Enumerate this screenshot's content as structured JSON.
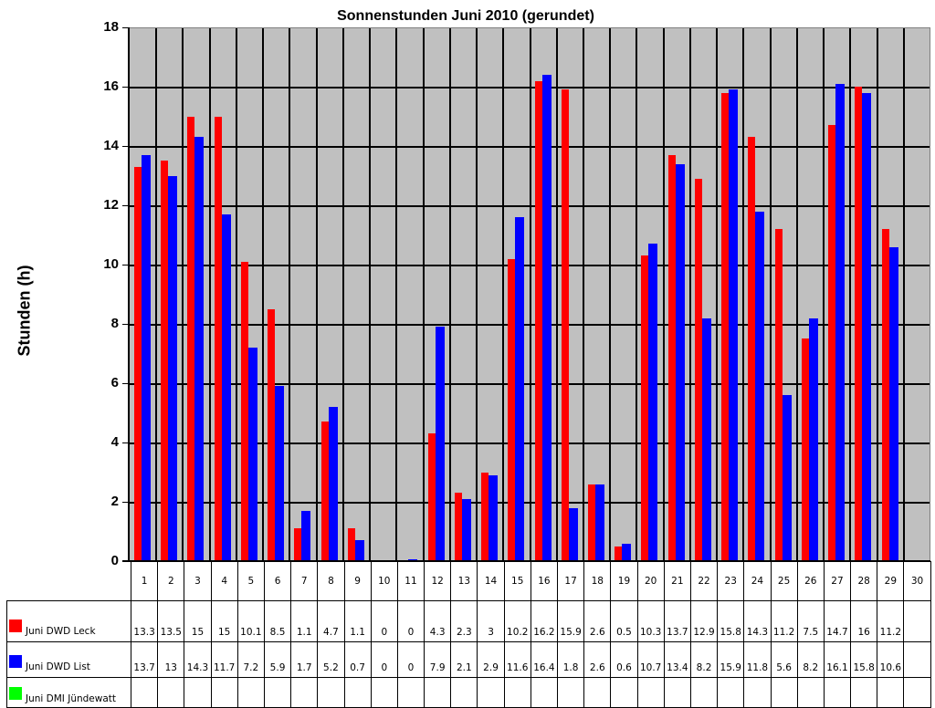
{
  "chart_data": {
    "type": "bar",
    "title": "Sonnenstunden Juni 2010 (gerundet)",
    "xlabel": "",
    "ylabel": "Stunden (h)",
    "ylim": [
      0,
      18
    ],
    "yticks": [
      0,
      2,
      4,
      6,
      8,
      10,
      12,
      14,
      16,
      18
    ],
    "grid": true,
    "legend_position": "data-table-bottom",
    "categories": [
      "1",
      "2",
      "3",
      "4",
      "5",
      "6",
      "7",
      "8",
      "9",
      "10",
      "11",
      "12",
      "13",
      "14",
      "15",
      "16",
      "17",
      "18",
      "19",
      "20",
      "21",
      "22",
      "23",
      "24",
      "25",
      "26",
      "27",
      "28",
      "29",
      "30"
    ],
    "series": [
      {
        "name": "Juni DWD Leck",
        "color": "#ff0000",
        "values": [
          13.3,
          13.5,
          15,
          15,
          10.1,
          8.5,
          1.1,
          4.7,
          1.1,
          0,
          0,
          4.3,
          2.3,
          3,
          10.2,
          16.2,
          15.9,
          2.6,
          0.5,
          10.3,
          13.7,
          12.9,
          15.8,
          14.3,
          11.2,
          7.5,
          14.7,
          16,
          11.2,
          null
        ],
        "labels": [
          "13.3",
          "13.5",
          "15",
          "15",
          "10.1",
          "8.5",
          "1.1",
          "4.7",
          "1.1",
          "0",
          "0",
          "4.3",
          "2.3",
          "3",
          "10.2",
          "16.2",
          "15.9",
          "2.6",
          "0.5",
          "10.3",
          "13.7",
          "12.9",
          "15.8",
          "14.3",
          "11.2",
          "7.5",
          "14.7",
          "16",
          "11.2",
          ""
        ]
      },
      {
        "name": "Juni DWD List",
        "color": "#0000ff",
        "values": [
          13.7,
          13,
          14.3,
          11.7,
          7.2,
          5.9,
          1.7,
          5.2,
          0.7,
          0,
          0.05,
          7.9,
          2.1,
          2.9,
          11.6,
          16.4,
          1.8,
          2.6,
          0.6,
          10.7,
          13.4,
          8.2,
          15.9,
          11.8,
          5.6,
          8.2,
          16.1,
          15.8,
          10.6,
          null
        ],
        "labels": [
          "13.7",
          "13",
          "14.3",
          "11.7",
          "7.2",
          "5.9",
          "1.7",
          "5.2",
          "0.7",
          "0",
          "0",
          "7.9",
          "2.1",
          "2.9",
          "11.6",
          "16.4",
          "1.8",
          "2.6",
          "0.6",
          "10.7",
          "13.4",
          "8.2",
          "15.9",
          "11.8",
          "5.6",
          "8.2",
          "16.1",
          "15.8",
          "10.6",
          ""
        ]
      },
      {
        "name": "Juni DMI Jündewatt",
        "color": "#00ff00",
        "values": [
          null,
          null,
          null,
          null,
          null,
          null,
          null,
          null,
          null,
          null,
          null,
          null,
          null,
          null,
          null,
          null,
          null,
          null,
          null,
          null,
          null,
          null,
          null,
          null,
          null,
          null,
          null,
          null,
          null,
          null
        ],
        "labels": [
          "",
          "",
          "",
          "",
          "",
          "",
          "",
          "",
          "",
          "",
          "",
          "",
          "",
          "",
          "",
          "",
          "",
          "",
          "",
          "",
          "",
          "",
          "",
          "",
          "",
          "",
          "",
          "",
          "",
          ""
        ]
      }
    ]
  },
  "colors": {
    "plot_background": "#c0c0c0",
    "grid": "#000000"
  }
}
